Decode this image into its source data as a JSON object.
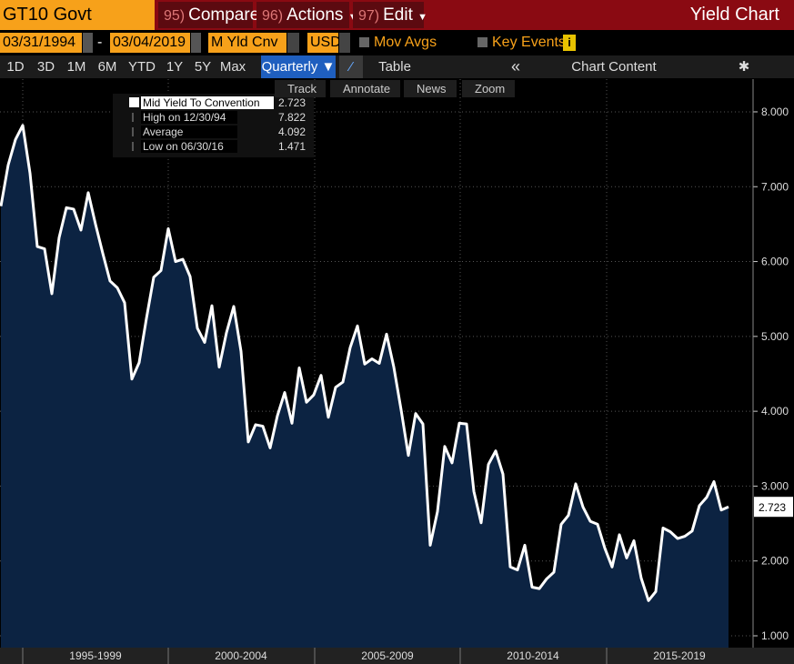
{
  "toolbar": {
    "ticker": "GT10 Govt",
    "menus": [
      {
        "num": "95)",
        "label": "Compare"
      },
      {
        "num": "96)",
        "label": "Actions"
      },
      {
        "num": "97)",
        "label": "Edit"
      }
    ],
    "title": "Yield Chart"
  },
  "controls": {
    "start_date": "03/31/1994",
    "separator": "-",
    "end_date": "03/04/2019",
    "field": "M Yld Cnv",
    "currency": "USD",
    "mov_avgs": "Mov Avgs",
    "key_events": "Key Events"
  },
  "periods": [
    "1D",
    "3D",
    "1M",
    "6M",
    "YTD",
    "1Y",
    "5Y",
    "Max"
  ],
  "frequency": "Quarterly",
  "table_button": "Table",
  "chart_content": "Chart Content",
  "tools": [
    "Track",
    "Annotate",
    "News",
    "Zoom"
  ],
  "chart_data": {
    "type": "line",
    "series": [
      {
        "name": "Mid Yield To Convention",
        "color": "#ffffff",
        "fill": "#0c2342",
        "values": [
          6.74,
          7.29,
          7.63,
          7.82,
          7.18,
          6.2,
          6.17,
          5.57,
          6.32,
          6.72,
          6.7,
          6.42,
          6.92,
          6.5,
          6.11,
          5.74,
          5.65,
          5.45,
          4.43,
          4.65,
          5.24,
          5.79,
          5.88,
          6.44,
          6.0,
          6.03,
          5.8,
          5.11,
          4.92,
          5.41,
          4.59,
          5.05,
          5.4,
          4.8,
          3.59,
          3.82,
          3.8,
          3.51,
          3.94,
          4.25,
          3.84,
          4.58,
          4.12,
          4.22,
          4.48,
          3.92,
          4.32,
          4.39,
          4.85,
          5.14,
          4.63,
          4.7,
          4.64,
          5.03,
          4.59,
          4.02,
          3.41,
          3.97,
          3.83,
          2.21,
          2.66,
          3.53,
          3.31,
          3.84,
          3.83,
          2.93,
          2.51,
          3.29,
          3.47,
          3.16,
          1.92,
          1.88,
          2.21,
          1.65,
          1.63,
          1.76,
          1.85,
          2.49,
          2.61,
          3.03,
          2.72,
          2.53,
          2.49,
          2.17,
          1.92,
          2.35,
          2.04,
          2.27,
          1.77,
          1.47,
          1.59,
          2.44,
          2.39,
          2.3,
          2.33,
          2.4,
          2.74,
          2.85,
          3.06,
          2.68,
          2.723
        ]
      }
    ],
    "current": 2.723,
    "stats": [
      {
        "label": "High on 12/30/94",
        "value": 7.822
      },
      {
        "label": "Average",
        "value": 4.092
      },
      {
        "label": "Low on 06/30/16",
        "value": 1.471
      }
    ],
    "x_labels": [
      "1995-1999",
      "2000-2004",
      "2005-2009",
      "2010-2014",
      "2015-2019"
    ],
    "ylim": [
      0.842,
      8.425
    ],
    "yticks": [
      {
        "value": 1,
        "label": "1.000"
      },
      {
        "value": 2,
        "label": "2.000"
      },
      {
        "value": 3,
        "label": "3.000"
      },
      {
        "value": 4,
        "label": "4.000"
      },
      {
        "value": 5,
        "label": "5.000"
      },
      {
        "value": 6,
        "label": "6.000"
      },
      {
        "value": 7,
        "label": "7.000"
      },
      {
        "value": 8,
        "label": "8.000"
      }
    ],
    "grid": true
  }
}
